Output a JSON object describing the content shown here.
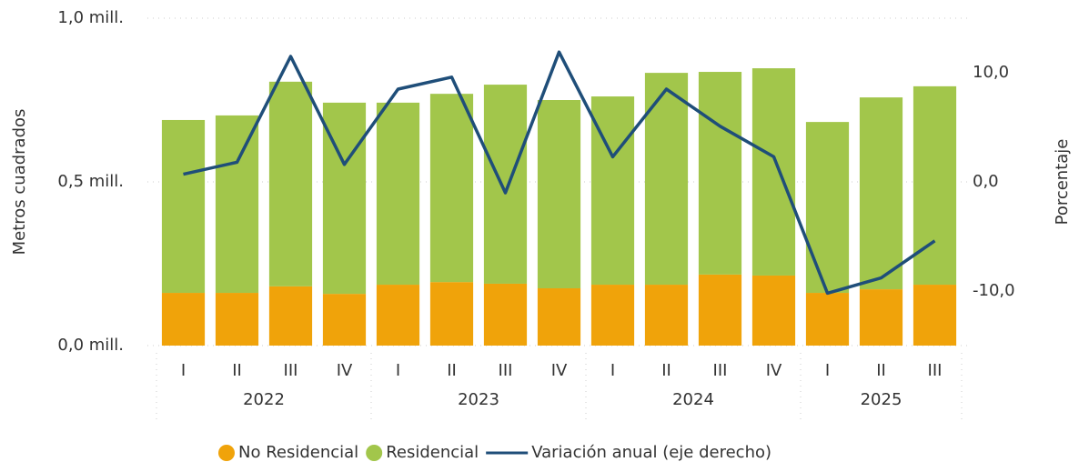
{
  "chart_data": {
    "type": "bar",
    "stacked": true,
    "categories": [
      "I",
      "II",
      "III",
      "IV",
      "I",
      "II",
      "III",
      "IV",
      "I",
      "II",
      "III",
      "IV",
      "I",
      "II",
      "III"
    ],
    "groups": [
      {
        "label": "2022",
        "count": 4
      },
      {
        "label": "2023",
        "count": 4
      },
      {
        "label": "2024",
        "count": 4
      },
      {
        "label": "2025",
        "count": 3
      }
    ],
    "series": [
      {
        "name": "No Residencial",
        "color": "#f0a30a",
        "values": [
          161000,
          161000,
          181000,
          158000,
          186000,
          194000,
          189000,
          175000,
          186000,
          186000,
          217000,
          214000,
          161000,
          172000,
          186000
        ]
      },
      {
        "name": "Residencial",
        "color": "#a2c64b",
        "values": [
          528000,
          542000,
          625000,
          584000,
          556000,
          575000,
          608000,
          575000,
          575000,
          647000,
          619000,
          633000,
          522000,
          586000,
          606000
        ]
      },
      {
        "name": "Variación anual (eje derecho)",
        "type": "line",
        "axis": "y2",
        "color": "#1f4e79",
        "values": [
          0.7,
          1.8,
          11.5,
          1.6,
          8.5,
          9.6,
          -1.0,
          11.9,
          2.3,
          8.5,
          5.1,
          2.3,
          -10.2,
          -8.8,
          -5.4
        ]
      }
    ],
    "ylabel": "Metros cuadrados",
    "y2label": "Porcentaje",
    "ylim": [
      0,
      1000000
    ],
    "yticks": [
      {
        "value": 0,
        "label": "0,0 mill."
      },
      {
        "value": 500000,
        "label": "0,5 mill."
      },
      {
        "value": 1000000,
        "label": "1,0 mill."
      }
    ],
    "y2lim": [
      -15,
      15
    ],
    "y2ticks": [
      {
        "value": -10,
        "label": "-10,0"
      },
      {
        "value": 0,
        "label": "0,0"
      },
      {
        "value": 10,
        "label": "10,0"
      }
    ],
    "grid": true,
    "legend": "bottom"
  }
}
